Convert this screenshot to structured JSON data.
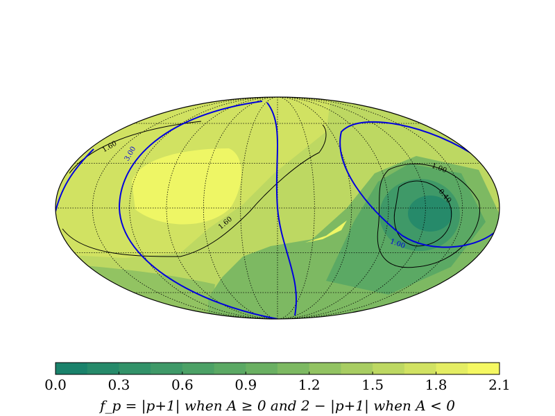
{
  "chart_data": {
    "type": "mollweide-contour",
    "contour_labels": [
      "1.60",
      "3.00",
      "1.60",
      "1.00",
      "0.40",
      "1.00"
    ],
    "colorbar": {
      "levels": [
        0,
        0.15,
        0.3,
        0.45,
        0.6,
        0.75,
        0.9,
        1.05,
        1.2,
        1.35,
        1.5,
        1.65,
        1.8,
        1.95,
        2.1
      ],
      "colors": [
        "#1a826b",
        "#268a6a",
        "#329269",
        "#3f9968",
        "#4ca166",
        "#5ba964",
        "#6ab062",
        "#7db962",
        "#92c362",
        "#a8cd62",
        "#bdd862",
        "#d1e262",
        "#e4ed63",
        "#f5f862"
      ],
      "lim": [
        0,
        2.1
      ],
      "ticks": [
        {
          "value": 0,
          "label": "0.0"
        },
        0.3,
        0.6,
        0.9,
        1.2,
        1.5,
        1.8,
        2.1
      ],
      "label": "f_p = |p+1| when A ≥ 0 and 2 − |p+1| when A < 0"
    }
  }
}
